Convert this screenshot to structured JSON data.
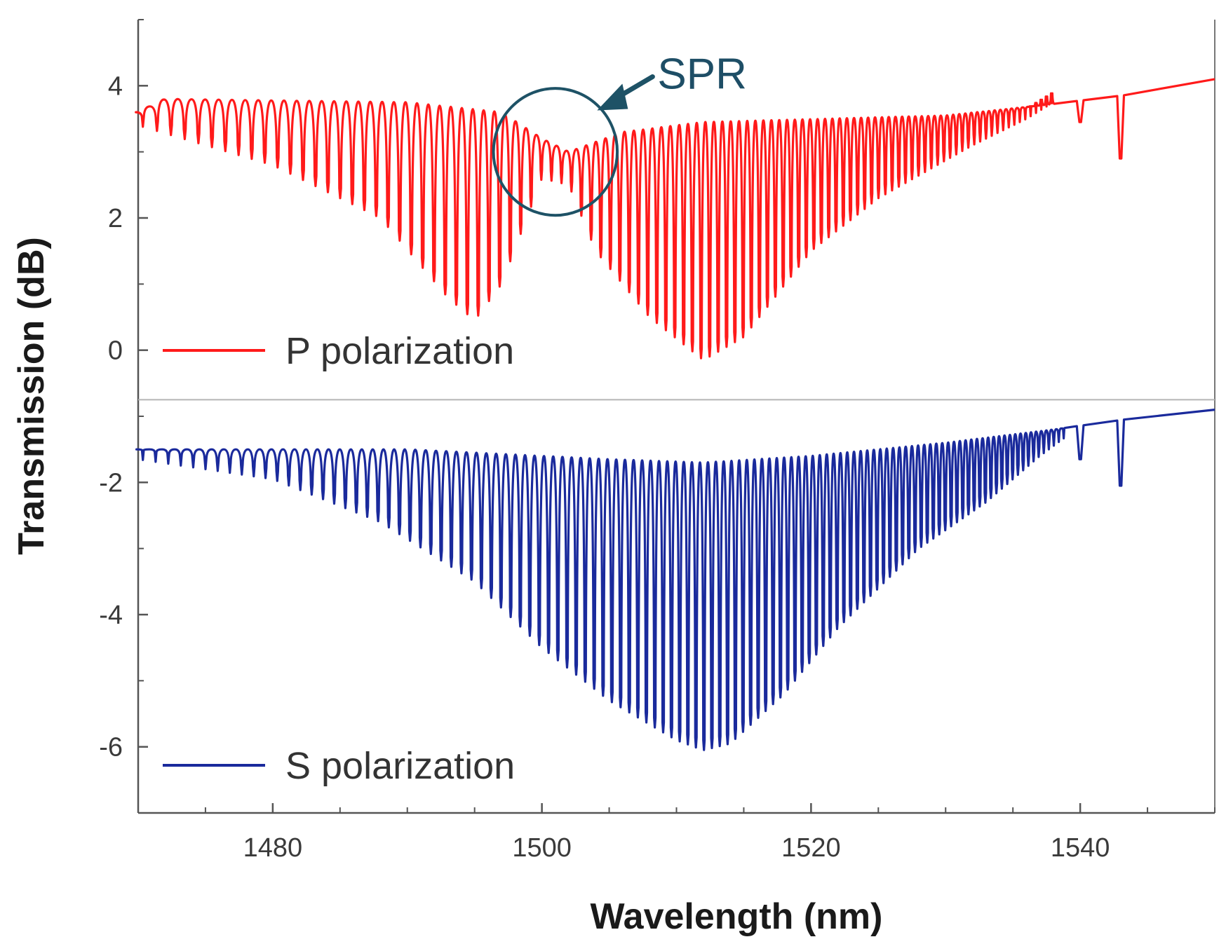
{
  "chart_data": {
    "type": "line",
    "title": "",
    "xlabel": "Wavelength (nm)",
    "ylabel": "Transmission (dB)",
    "xlim": [
      1470,
      1550
    ],
    "ylim": [
      -7,
      5
    ],
    "x_ticks": [
      1480,
      1500,
      1520,
      1540
    ],
    "x_tick_labels": [
      "1480",
      "1500",
      "1520",
      "1540"
    ],
    "y_ticks": [
      -6,
      -4,
      -2,
      0,
      2,
      4
    ],
    "y_tick_labels": [
      "-6",
      "-4",
      "-2",
      "0",
      "2",
      "4"
    ],
    "grid": false,
    "separator_y": -0.75,
    "series": [
      {
        "name": "P polarization",
        "label": "P polarization",
        "color": "#ff1a1a",
        "baseline": [
          [
            1470,
            3.6
          ],
          [
            1472,
            3.8
          ],
          [
            1490,
            3.75
          ],
          [
            1497,
            3.6
          ],
          [
            1500,
            3.2
          ],
          [
            1502,
            3.0
          ],
          [
            1506,
            3.3
          ],
          [
            1512,
            3.45
          ],
          [
            1530,
            3.55
          ],
          [
            1537,
            3.7
          ],
          [
            1545,
            3.9
          ],
          [
            1550,
            4.1
          ]
        ],
        "dip_envelope": [
          [
            1470,
            3.4
          ],
          [
            1480,
            2.8
          ],
          [
            1488,
            2.0
          ],
          [
            1493,
            0.8
          ],
          [
            1495,
            0.45
          ],
          [
            1497,
            1.0
          ],
          [
            1500,
            2.6
          ],
          [
            1502,
            2.5
          ],
          [
            1504,
            1.5
          ],
          [
            1508,
            0.5
          ],
          [
            1512,
            -0.15
          ],
          [
            1515,
            0.2
          ],
          [
            1520,
            1.5
          ],
          [
            1525,
            2.3
          ],
          [
            1532,
            3.1
          ],
          [
            1536,
            3.5
          ],
          [
            1538,
            3.75
          ]
        ],
        "fringe_period_start": 1.05,
        "fringe_period_end": 0.38,
        "extra_dips": [
          [
            1540,
            3.45
          ],
          [
            1543,
            2.9
          ]
        ]
      },
      {
        "name": "S polarization",
        "label": "S polarization",
        "color": "#1a2a9c",
        "baseline": [
          [
            1470,
            -1.5
          ],
          [
            1490,
            -1.5
          ],
          [
            1505,
            -1.65
          ],
          [
            1512,
            -1.7
          ],
          [
            1520,
            -1.6
          ],
          [
            1530,
            -1.4
          ],
          [
            1538,
            -1.2
          ],
          [
            1545,
            -1.0
          ],
          [
            1550,
            -0.9
          ]
        ],
        "dip_envelope": [
          [
            1470,
            -1.65
          ],
          [
            1480,
            -1.95
          ],
          [
            1488,
            -2.6
          ],
          [
            1495,
            -3.5
          ],
          [
            1500,
            -4.5
          ],
          [
            1505,
            -5.3
          ],
          [
            1510,
            -5.9
          ],
          [
            1512,
            -6.05
          ],
          [
            1514,
            -5.95
          ],
          [
            1518,
            -5.2
          ],
          [
            1522,
            -4.2
          ],
          [
            1528,
            -3.0
          ],
          [
            1533,
            -2.3
          ],
          [
            1537,
            -1.6
          ],
          [
            1539,
            -1.3
          ]
        ],
        "fringe_period_start": 0.95,
        "fringe_period_end": 0.36,
        "extra_dips": [
          [
            1540,
            -1.65
          ],
          [
            1543,
            -2.05
          ]
        ]
      }
    ],
    "annotation": {
      "text": "SPR",
      "center_x": 1501,
      "center_y": 3.0,
      "radius_x_nm": 4.6,
      "radius_y_db": 0.96,
      "color": "#1e5266"
    }
  }
}
